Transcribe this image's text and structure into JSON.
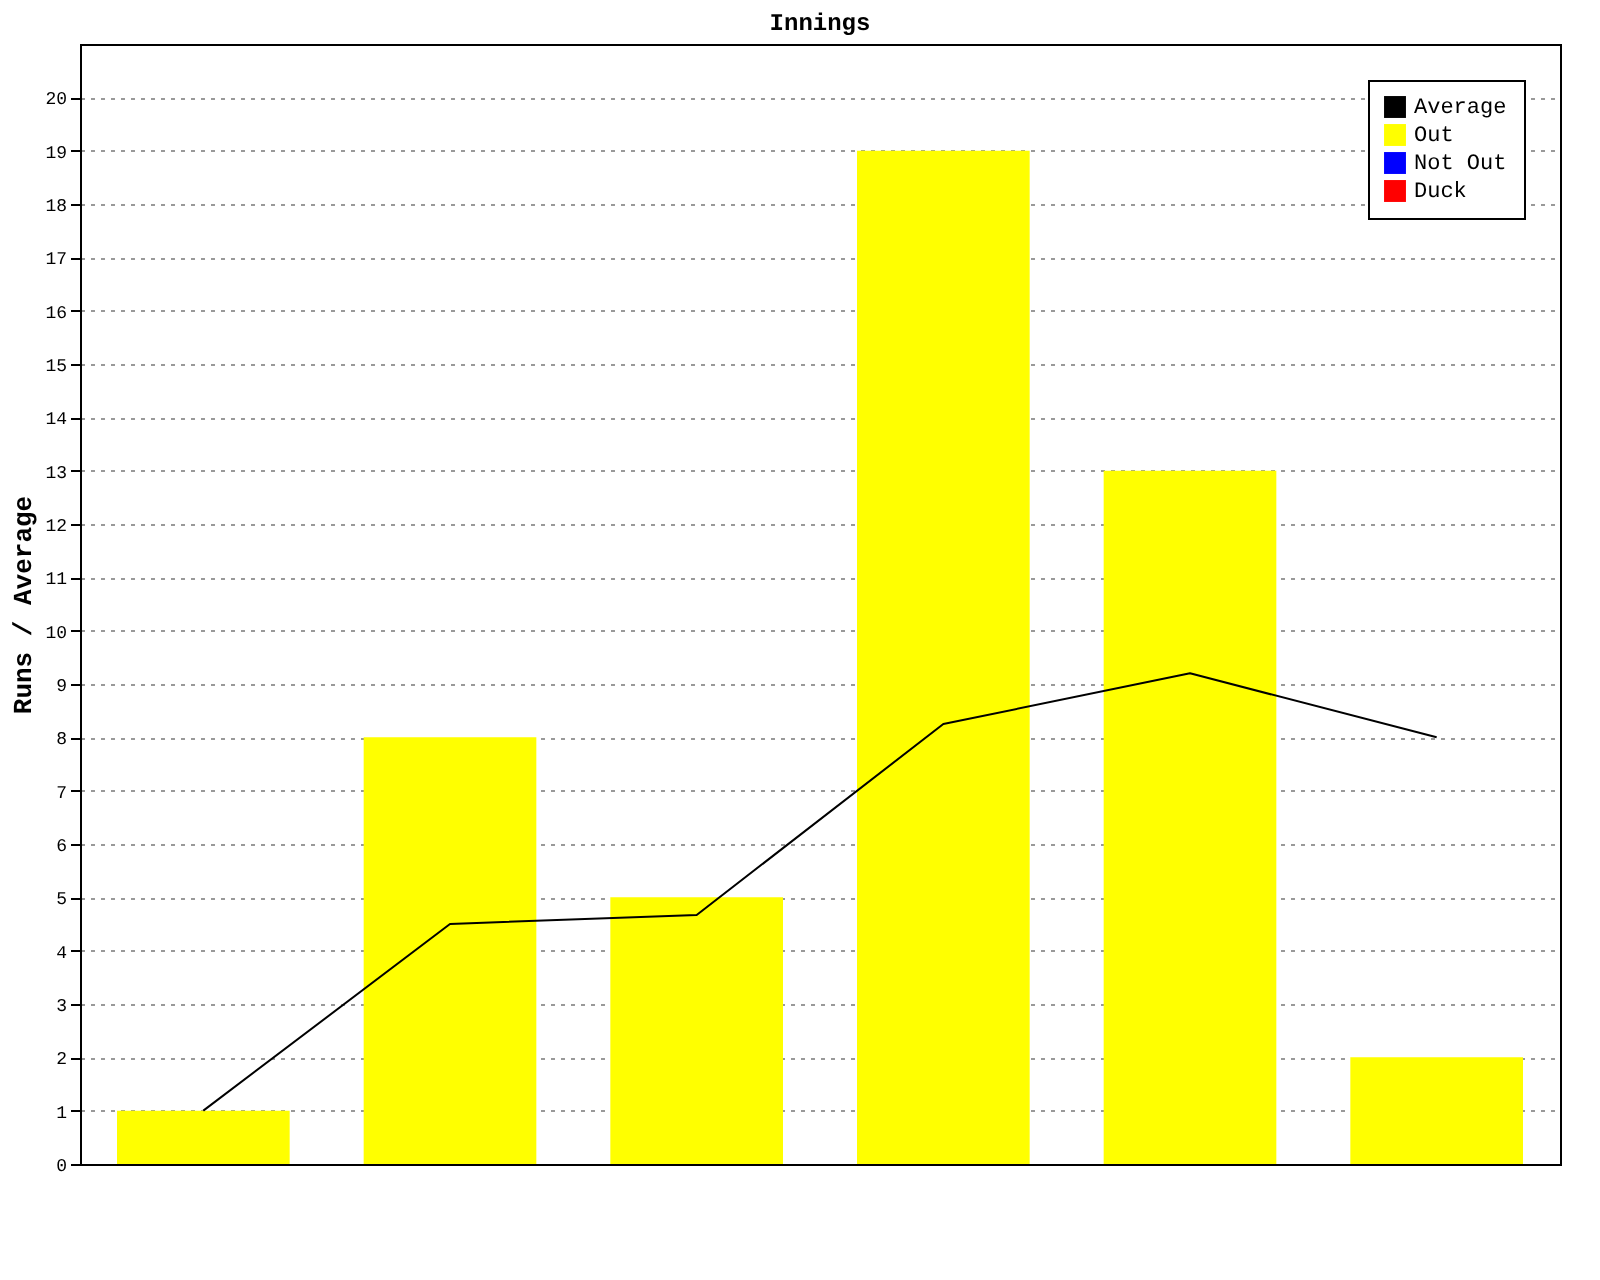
{
  "chart_data": {
    "type": "bar",
    "title": "Innings",
    "ylabel": "Runs / Average",
    "categories": [
      null,
      null,
      null,
      null,
      null,
      null
    ],
    "series": [
      {
        "name": "Average",
        "type": "line",
        "color": "#000000",
        "values": [
          1,
          4.5,
          4.67,
          8.25,
          9.2,
          8.0
        ]
      },
      {
        "name": "Out",
        "type": "bar",
        "color": "#ffff00",
        "values": [
          1,
          8,
          5,
          19,
          13,
          2
        ]
      },
      {
        "name": "Not Out",
        "type": "bar",
        "color": "#0000ff",
        "values": [
          null,
          null,
          null,
          null,
          null,
          null
        ]
      },
      {
        "name": "Duck",
        "type": "bar",
        "color": "#ff0000",
        "values": [
          null,
          null,
          null,
          null,
          null,
          null
        ]
      }
    ],
    "ylim": [
      0,
      21
    ],
    "yticks": [
      0,
      1,
      2,
      3,
      4,
      5,
      6,
      7,
      8,
      9,
      10,
      11,
      12,
      13,
      14,
      15,
      16,
      17,
      18,
      19,
      20
    ],
    "grid": "y",
    "legend": "top right",
    "tick_labels": "y"
  }
}
